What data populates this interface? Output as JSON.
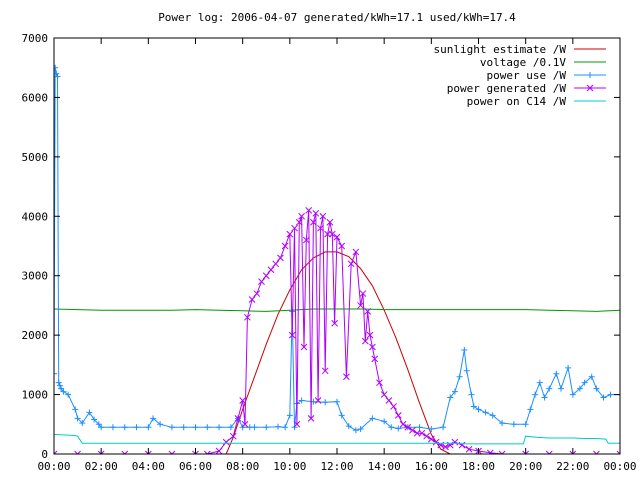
{
  "chart_data": {
    "type": "line",
    "title": "Power log: 2006-04-07 generated/kWh=17.1 used/kWh=17.4",
    "xlabel": "",
    "ylabel": "",
    "xlim": [
      "00:00",
      "24:00"
    ],
    "ylim": [
      0,
      7000
    ],
    "x_tick_labels": [
      "00:00",
      "02:00",
      "04:00",
      "06:00",
      "08:00",
      "10:00",
      "12:00",
      "14:00",
      "16:00",
      "18:00",
      "20:00",
      "22:00",
      "00:00"
    ],
    "y_tick_labels": [
      "0",
      "1000",
      "2000",
      "3000",
      "4000",
      "5000",
      "6000",
      "7000"
    ],
    "y_ticks": [
      0,
      1000,
      2000,
      3000,
      4000,
      5000,
      6000,
      7000
    ],
    "grid": false,
    "legend_position": "top-right",
    "colors": {
      "sunlight": "#cc0000",
      "voltage": "#009900",
      "power_use": "#1e8fff",
      "power_generated": "#b000ff",
      "power_c14": "#00cccc"
    },
    "series": [
      {
        "name": "sunlight estimate /W",
        "key": "sunlight",
        "marker": "none",
        "x": [
          7.3,
          7.6,
          8.0,
          8.5,
          9.0,
          9.5,
          10.0,
          10.5,
          11.0,
          11.5,
          12.0,
          12.5,
          13.0,
          13.5,
          14.0,
          14.5,
          15.0,
          15.5,
          16.0,
          16.4,
          16.8
        ],
        "y": [
          0,
          280,
          750,
          1300,
          1850,
          2350,
          2760,
          3100,
          3300,
          3400,
          3400,
          3320,
          3120,
          2830,
          2420,
          1950,
          1420,
          860,
          330,
          80,
          0
        ]
      },
      {
        "name": "voltage /0.1V",
        "key": "voltage",
        "marker": "none",
        "x": [
          0,
          1,
          2,
          3,
          4,
          5,
          6,
          7,
          8,
          9,
          10,
          11,
          12,
          13,
          14,
          15,
          16,
          17,
          18,
          19,
          20,
          21,
          22,
          23,
          24
        ],
        "y": [
          2440,
          2430,
          2420,
          2420,
          2420,
          2420,
          2430,
          2420,
          2410,
          2400,
          2420,
          2440,
          2440,
          2440,
          2430,
          2430,
          2430,
          2430,
          2430,
          2430,
          2430,
          2420,
          2410,
          2400,
          2420
        ]
      },
      {
        "name": "power use /W",
        "key": "power_use",
        "marker": "plus",
        "x": [
          0,
          0.05,
          0.1,
          0.15,
          0.2,
          0.25,
          0.3,
          0.4,
          0.6,
          0.9,
          1.0,
          1.2,
          1.5,
          1.7,
          1.9,
          2.0,
          2.5,
          3.0,
          3.5,
          4.0,
          4.2,
          4.5,
          5.0,
          5.5,
          6.0,
          6.5,
          7.0,
          7.5,
          7.8,
          8.0,
          8.3,
          8.5,
          9.0,
          9.5,
          9.8,
          10.0,
          10.1,
          10.2,
          10.3,
          10.5,
          11.0,
          11.5,
          12.0,
          12.2,
          12.5,
          12.8,
          13.0,
          13.5,
          14.0,
          14.3,
          14.6,
          15.0,
          15.5,
          16.0,
          16.5,
          16.8,
          17.0,
          17.2,
          17.4,
          17.5,
          17.7,
          17.8,
          18.0,
          18.3,
          18.6,
          19.0,
          19.5,
          20.0,
          20.2,
          20.4,
          20.6,
          20.8,
          21.0,
          21.3,
          21.5,
          21.8,
          22.0,
          22.3,
          22.5,
          22.8,
          23.0,
          23.3,
          23.6,
          24.0
        ],
        "y": [
          1350,
          6500,
          6400,
          6350,
          1200,
          1150,
          1100,
          1050,
          1000,
          750,
          600,
          520,
          700,
          580,
          500,
          450,
          450,
          450,
          450,
          450,
          600,
          500,
          450,
          450,
          450,
          450,
          450,
          450,
          600,
          450,
          450,
          450,
          450,
          460,
          450,
          650,
          2400,
          450,
          850,
          900,
          880,
          870,
          880,
          650,
          470,
          400,
          420,
          600,
          550,
          450,
          430,
          450,
          450,
          420,
          450,
          950,
          1050,
          1300,
          1750,
          1400,
          1000,
          800,
          750,
          700,
          650,
          520,
          500,
          500,
          750,
          1000,
          1200,
          950,
          1100,
          1350,
          1100,
          1450,
          1000,
          1100,
          1200,
          1300,
          1100,
          950,
          1000,
          1000
        ]
      },
      {
        "name": "power generated /W",
        "key": "power_generated",
        "marker": "cross",
        "x": [
          0,
          1,
          2,
          3,
          4,
          5,
          6,
          6.5,
          7.0,
          7.3,
          7.6,
          7.8,
          8.0,
          8.1,
          8.2,
          8.4,
          8.6,
          8.8,
          9.0,
          9.2,
          9.4,
          9.6,
          9.8,
          10.0,
          10.1,
          10.2,
          10.3,
          10.4,
          10.5,
          10.6,
          10.7,
          10.8,
          10.9,
          11.0,
          11.1,
          11.2,
          11.3,
          11.4,
          11.5,
          11.6,
          11.7,
          11.8,
          11.9,
          12.0,
          12.2,
          12.4,
          12.6,
          12.8,
          13.0,
          13.1,
          13.2,
          13.3,
          13.4,
          13.5,
          13.6,
          13.8,
          14.0,
          14.2,
          14.4,
          14.6,
          14.8,
          15.0,
          15.2,
          15.4,
          15.6,
          15.8,
          16.0,
          16.2,
          16.4,
          16.6,
          16.8,
          17.0,
          17.3,
          17.6,
          18.0,
          18.5,
          19.0,
          20.0,
          21.0,
          22.0,
          23.0,
          24.0
        ],
        "y": [
          0,
          0,
          0,
          0,
          0,
          0,
          0,
          0,
          50,
          200,
          300,
          600,
          900,
          500,
          2300,
          2600,
          2700,
          2900,
          3000,
          3100,
          3200,
          3300,
          3500,
          3700,
          2000,
          3800,
          500,
          3900,
          4000,
          1800,
          3600,
          4100,
          600,
          3900,
          4050,
          900,
          3800,
          4000,
          1400,
          3700,
          3900,
          3700,
          2200,
          3650,
          3500,
          1300,
          3200,
          3400,
          2500,
          2700,
          1900,
          2400,
          2000,
          1800,
          1600,
          1200,
          1000,
          900,
          800,
          650,
          500,
          450,
          400,
          350,
          350,
          300,
          250,
          200,
          150,
          120,
          150,
          200,
          150,
          80,
          50,
          20,
          0,
          0,
          0,
          0,
          0,
          0
        ]
      },
      {
        "name": "power on C14 /W",
        "key": "power_c14",
        "marker": "none",
        "x": [
          0,
          0.5,
          0.9,
          1.0,
          1.2,
          2.0,
          4.0,
          6.0,
          8.0,
          10.0,
          12.0,
          14.0,
          16.0,
          17.0,
          17.5,
          18.0,
          19.0,
          19.9,
          20.0,
          20.5,
          21.0,
          22.0,
          22.5,
          23.0,
          23.4,
          23.5,
          24.0
        ],
        "y": [
          330,
          320,
          310,
          300,
          180,
          180,
          180,
          180,
          180,
          180,
          180,
          180,
          180,
          180,
          170,
          170,
          170,
          170,
          300,
          280,
          270,
          270,
          260,
          260,
          250,
          180,
          180
        ]
      }
    ]
  }
}
